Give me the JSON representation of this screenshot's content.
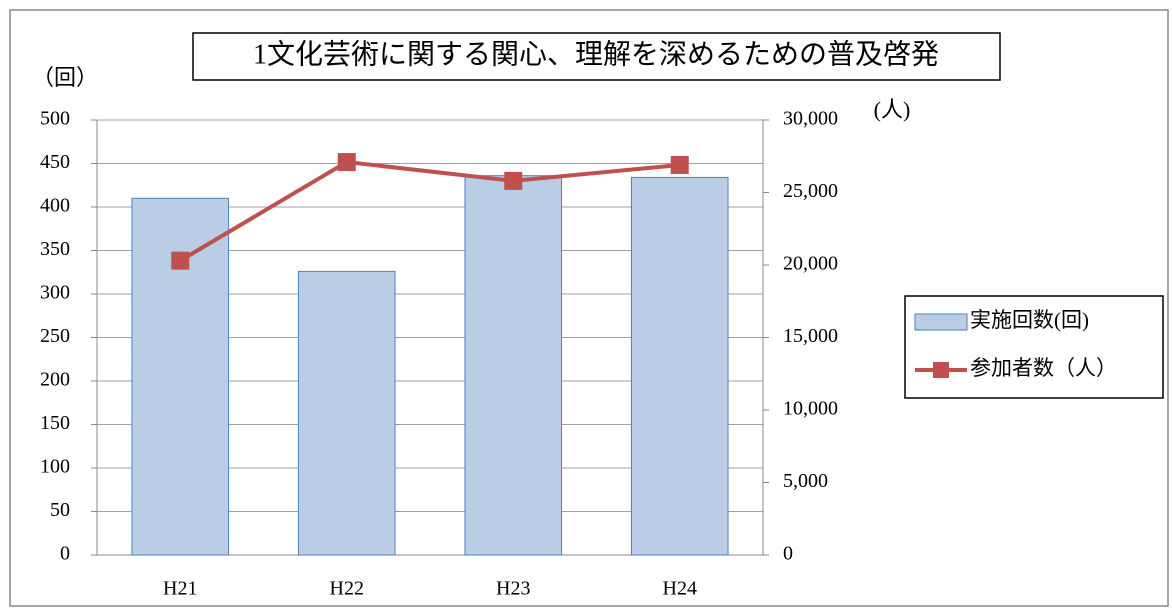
{
  "chart_data": {
    "type": "bar",
    "title": "1文化芸術に関する関心、理解を深めるための普及啓発",
    "y_label": "（回）",
    "y2_label": "(人)",
    "categories": [
      "H21",
      "H22",
      "H23",
      "H24"
    ],
    "series": [
      {
        "name": "実施回数(回)",
        "type": "bar",
        "color": "#b9cde5",
        "values": [
          410,
          326,
          436,
          434
        ]
      },
      {
        "name": "参加者数（人）",
        "type": "line",
        "axis": "y2",
        "color": "#c0504d",
        "values": [
          20300,
          27100,
          25800,
          26900
        ]
      }
    ],
    "ylim": [
      0,
      500
    ],
    "yticks": [
      0,
      50,
      100,
      150,
      200,
      250,
      300,
      350,
      400,
      450,
      500
    ],
    "y2lim": [
      0,
      30000
    ],
    "y2ticks": [
      0,
      {
        "value": 5000,
        "label": "5,000"
      },
      {
        "value": 10000,
        "label": "10,000"
      },
      {
        "value": 15000,
        "label": "15,000"
      },
      {
        "value": 20000,
        "label": "20,000"
      },
      {
        "value": 25000,
        "label": "25,000"
      },
      {
        "value": 30000,
        "label": "30,000"
      }
    ],
    "grid": true,
    "legend": "right"
  }
}
